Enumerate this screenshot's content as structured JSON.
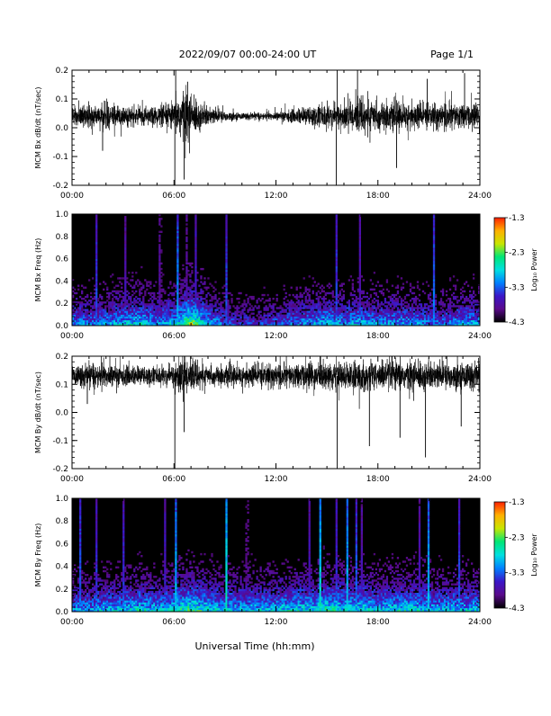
{
  "header": {
    "title": "2022/09/07  00:00-24:00 UT",
    "page": "Page 1/1"
  },
  "footer": {
    "xlabel": "Universal Time (hh:mm)"
  },
  "colors": {
    "trace": "#000000",
    "colormap": [
      "#000000",
      "#5a0a8c",
      "#3b16c8",
      "#0080ff",
      "#00e0e0",
      "#00e676",
      "#c8e600",
      "#ffb000",
      "#ff2000"
    ]
  },
  "chart_data": [
    {
      "type": "line",
      "ylabel": "MCM Bx dB/dt (nT/sec)",
      "xlim": [
        0,
        24
      ],
      "ylim": [
        -0.2,
        0.2
      ],
      "xticks": [
        0,
        6,
        12,
        18,
        24
      ],
      "xtick_labels": [
        "00:00",
        "06:00",
        "12:00",
        "18:00",
        "24:00"
      ],
      "yticks": [
        -0.2,
        -0.1,
        0.0,
        0.1,
        0.2
      ],
      "ytick_labels": [
        "-0.2",
        "-0.1",
        "0.0",
        "0.1",
        "0.2"
      ],
      "baseline": 0.04,
      "activity_envelope": {
        "hours": [
          0,
          1,
          2,
          3,
          4,
          5,
          6,
          6.5,
          7,
          8,
          9,
          10,
          11,
          12,
          13,
          14,
          15,
          16,
          17,
          18,
          19,
          20,
          21,
          22,
          23,
          24
        ],
        "amplitude": [
          0.03,
          0.035,
          0.04,
          0.03,
          0.025,
          0.03,
          0.04,
          0.09,
          0.06,
          0.03,
          0.015,
          0.01,
          0.01,
          0.012,
          0.02,
          0.03,
          0.04,
          0.035,
          0.05,
          0.045,
          0.04,
          0.04,
          0.035,
          0.04,
          0.035,
          0.035
        ]
      },
      "spikes": [
        {
          "x": 6.05,
          "y": -0.2
        },
        {
          "x": 6.1,
          "y": 0.2
        },
        {
          "x": 6.6,
          "y": -0.18
        },
        {
          "x": 6.8,
          "y": 0.16
        },
        {
          "x": 15.55,
          "y": -0.2
        },
        {
          "x": 15.6,
          "y": 0.2
        },
        {
          "x": 19.1,
          "y": -0.14
        },
        {
          "x": 16.8,
          "y": 0.2
        },
        {
          "x": 23.1,
          "y": 0.19
        },
        {
          "x": 1.8,
          "y": -0.08
        },
        {
          "x": 20.9,
          "y": 0.17
        }
      ]
    },
    {
      "type": "heatmap",
      "ylabel": "MCM Bx Freq (Hz)",
      "xlim": [
        0,
        24
      ],
      "ylim": [
        0,
        1.0
      ],
      "xticks": [
        0,
        6,
        12,
        18,
        24
      ],
      "xtick_labels": [
        "00:00",
        "06:00",
        "12:00",
        "18:00",
        "24:00"
      ],
      "yticks": [
        0,
        0.2,
        0.4,
        0.6,
        0.8,
        1.0
      ],
      "ytick_labels": [
        "0.0",
        "0.2",
        "0.4",
        "0.6",
        "0.8",
        "1.0"
      ],
      "colorbar": {
        "label": "Log₁₀ Power",
        "range": [
          -4.3,
          -1.3
        ],
        "ticks": [
          -1.3,
          -2.3,
          -3.3,
          -4.3
        ],
        "tick_labels": [
          "-1.3",
          "-2.3",
          "-3.3",
          "-4.3"
        ]
      },
      "stripes": [
        {
          "hour": 1.4,
          "strength": 0.65
        },
        {
          "hour": 3.1,
          "strength": 0.45
        },
        {
          "hour": 5.2,
          "strength": 0.6
        },
        {
          "hour": 6.2,
          "strength": 0.55
        },
        {
          "hour": 6.7,
          "strength": 0.5
        },
        {
          "hour": 7.3,
          "strength": 0.45
        },
        {
          "hour": 9.1,
          "strength": 0.5
        },
        {
          "hour": 15.6,
          "strength": 0.85
        },
        {
          "hour": 16.9,
          "strength": 0.55
        },
        {
          "hour": 21.3,
          "strength": 0.45
        }
      ],
      "activity": {
        "hours": [
          0,
          1,
          2,
          3,
          4,
          5,
          6,
          7,
          8,
          9,
          10,
          11,
          12,
          13,
          14,
          15,
          16,
          17,
          18,
          19,
          20,
          21,
          22,
          23,
          24
        ],
        "level": [
          0.55,
          0.5,
          0.55,
          0.6,
          0.65,
          0.55,
          0.6,
          0.85,
          0.6,
          0.45,
          0.4,
          0.4,
          0.45,
          0.5,
          0.55,
          0.6,
          0.55,
          0.6,
          0.55,
          0.55,
          0.55,
          0.5,
          0.5,
          0.55,
          0.55
        ]
      }
    },
    {
      "type": "line",
      "ylabel": "MCM By dB/dt (nT/sec)",
      "xlim": [
        0,
        24
      ],
      "ylim": [
        -0.2,
        0.2
      ],
      "xticks": [
        0,
        6,
        12,
        18,
        24
      ],
      "xtick_labels": [
        "00:00",
        "06:00",
        "12:00",
        "18:00",
        "24:00"
      ],
      "yticks": [
        -0.2,
        -0.1,
        0.0,
        0.1,
        0.2
      ],
      "ytick_labels": [
        "-0.2",
        "-0.1",
        "0.0",
        "0.1",
        "0.2"
      ],
      "baseline": 0.13,
      "activity_envelope": {
        "hours": [
          0,
          1,
          2,
          3,
          4,
          5,
          6,
          6.5,
          7,
          8,
          9,
          10,
          11,
          12,
          13,
          14,
          15,
          16,
          17,
          18,
          19,
          20,
          21,
          22,
          23,
          24
        ],
        "amplitude": [
          0.03,
          0.035,
          0.035,
          0.03,
          0.03,
          0.03,
          0.035,
          0.06,
          0.045,
          0.03,
          0.03,
          0.03,
          0.035,
          0.035,
          0.035,
          0.04,
          0.04,
          0.04,
          0.045,
          0.045,
          0.045,
          0.045,
          0.045,
          0.04,
          0.04,
          0.04
        ]
      },
      "spikes": [
        {
          "x": 6.05,
          "y": -0.2
        },
        {
          "x": 15.6,
          "y": -0.2
        },
        {
          "x": 17.5,
          "y": -0.12
        },
        {
          "x": 20.8,
          "y": -0.16
        },
        {
          "x": 19.3,
          "y": -0.09
        },
        {
          "x": 6.6,
          "y": -0.07
        },
        {
          "x": 14.6,
          "y": 0.2
        },
        {
          "x": 22.9,
          "y": -0.05
        },
        {
          "x": 0.9,
          "y": 0.03
        }
      ]
    },
    {
      "type": "heatmap",
      "ylabel": "MCM By Freq (Hz)",
      "xlim": [
        0,
        24
      ],
      "ylim": [
        0,
        1.0
      ],
      "xticks": [
        0,
        6,
        12,
        18,
        24
      ],
      "xtick_labels": [
        "00:00",
        "06:00",
        "12:00",
        "18:00",
        "24:00"
      ],
      "yticks": [
        0,
        0.2,
        0.4,
        0.6,
        0.8,
        1.0
      ],
      "ytick_labels": [
        "0.0",
        "0.2",
        "0.4",
        "0.6",
        "0.8",
        "1.0"
      ],
      "colorbar": {
        "label": "Log₁₀ Power",
        "range": [
          -4.3,
          -1.3
        ],
        "ticks": [
          -1.3,
          -2.3,
          -3.3,
          -4.3
        ],
        "tick_labels": [
          "-1.3",
          "-2.3",
          "-3.3",
          "-4.3"
        ]
      },
      "stripes": [
        {
          "hour": 0.5,
          "strength": 0.55
        },
        {
          "hour": 1.4,
          "strength": 0.6
        },
        {
          "hour": 3.0,
          "strength": 0.5
        },
        {
          "hour": 5.5,
          "strength": 0.5
        },
        {
          "hour": 6.1,
          "strength": 0.55
        },
        {
          "hour": 9.1,
          "strength": 0.85
        },
        {
          "hour": 10.3,
          "strength": 0.55
        },
        {
          "hour": 14.0,
          "strength": 0.5
        },
        {
          "hour": 14.6,
          "strength": 0.6
        },
        {
          "hour": 15.6,
          "strength": 0.8
        },
        {
          "hour": 16.2,
          "strength": 0.55
        },
        {
          "hour": 16.7,
          "strength": 0.6
        },
        {
          "hour": 17.0,
          "strength": 0.65
        },
        {
          "hour": 20.4,
          "strength": 0.6
        },
        {
          "hour": 21.0,
          "strength": 0.8
        },
        {
          "hour": 22.8,
          "strength": 0.5
        }
      ],
      "activity": {
        "hours": [
          0,
          1,
          2,
          3,
          4,
          5,
          6,
          7,
          8,
          9,
          10,
          11,
          12,
          13,
          14,
          15,
          16,
          17,
          18,
          19,
          20,
          21,
          22,
          23,
          24
        ],
        "level": [
          0.55,
          0.55,
          0.6,
          0.6,
          0.65,
          0.6,
          0.65,
          0.75,
          0.65,
          0.6,
          0.6,
          0.6,
          0.6,
          0.65,
          0.65,
          0.7,
          0.65,
          0.65,
          0.6,
          0.65,
          0.65,
          0.6,
          0.6,
          0.6,
          0.6
        ]
      }
    }
  ]
}
